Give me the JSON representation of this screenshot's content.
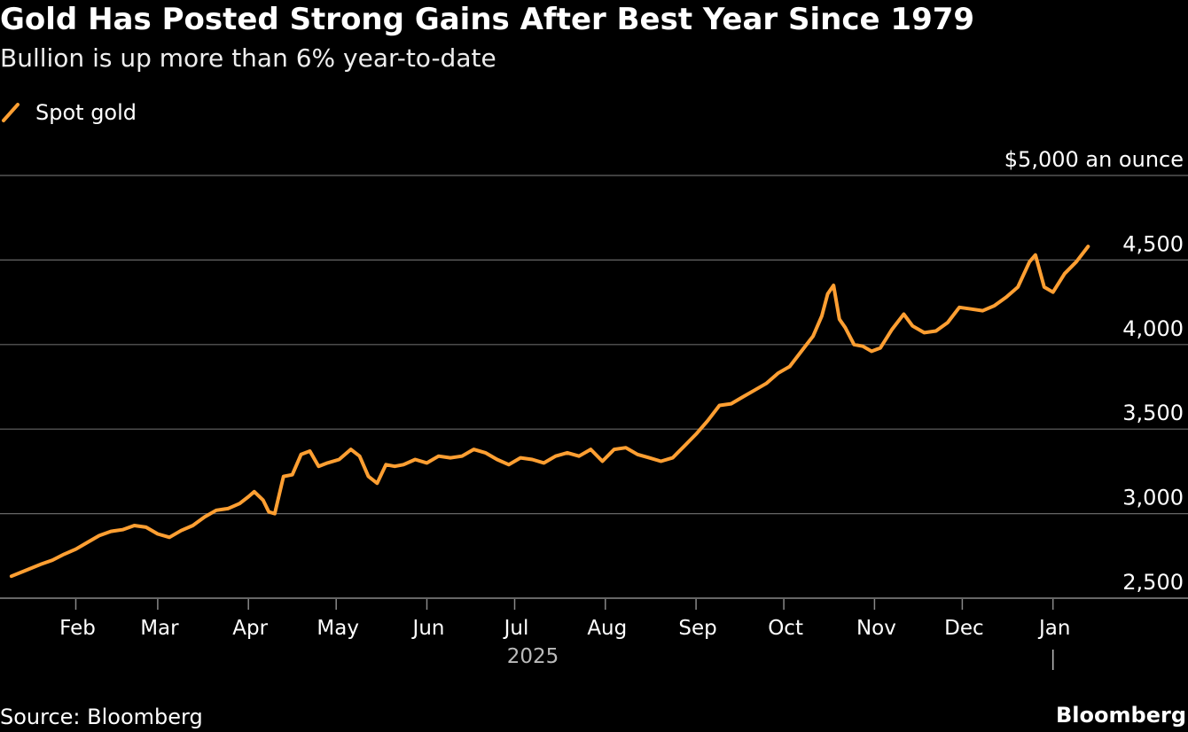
{
  "title": "Gold Has Posted Strong Gains After Best Year Since 1979",
  "subtitle": "Bullion is up more than 6% year-to-date",
  "source": "Source: Bloomberg",
  "brand": "Bloomberg",
  "colors": {
    "background": "#000000",
    "line": "#ff9f32",
    "grid": "#666666",
    "text": "#ffffff",
    "muted": "#bbbbbb"
  },
  "chart_data": {
    "type": "line",
    "title": "Gold Has Posted Strong Gains After Best Year Since 1979",
    "subtitle": "Bullion is up more than 6% year-to-date",
    "ylabel": "$5,000 an ounce",
    "ylim": [
      2500,
      5000
    ],
    "yticks": [
      2500,
      3000,
      3500,
      4000,
      4500,
      5000
    ],
    "ytick_labels": [
      "2,500",
      "3,000",
      "3,500",
      "4,000",
      "4,500",
      "$5,000 an ounce"
    ],
    "xlim": [
      "2025-01-07",
      "2026-01-31"
    ],
    "xticks": [
      {
        "date": "2025-02-01",
        "label": "Feb"
      },
      {
        "date": "2025-03-01",
        "label": "Mar"
      },
      {
        "date": "2025-04-01",
        "label": "Apr"
      },
      {
        "date": "2025-05-01",
        "label": "May"
      },
      {
        "date": "2025-06-01",
        "label": "Jun"
      },
      {
        "date": "2025-07-01",
        "label": "Jul"
      },
      {
        "date": "2025-08-01",
        "label": "Aug"
      },
      {
        "date": "2025-09-01",
        "label": "Sep"
      },
      {
        "date": "2025-10-01",
        "label": "Oct"
      },
      {
        "date": "2025-11-01",
        "label": "Nov"
      },
      {
        "date": "2025-12-01",
        "label": "Dec"
      },
      {
        "date": "2026-01-01",
        "label": "Jan"
      }
    ],
    "year_label": "2025",
    "grid": true,
    "legend": "top-left",
    "series": [
      {
        "name": "Spot gold",
        "color": "#ff9f32",
        "x": [
          "2025-01-10",
          "2025-01-15",
          "2025-01-20",
          "2025-01-24",
          "2025-01-28",
          "2025-02-01",
          "2025-02-05",
          "2025-02-09",
          "2025-02-13",
          "2025-02-17",
          "2025-02-21",
          "2025-02-25",
          "2025-03-01",
          "2025-03-05",
          "2025-03-09",
          "2025-03-13",
          "2025-03-17",
          "2025-03-21",
          "2025-03-25",
          "2025-03-29",
          "2025-04-01",
          "2025-04-03",
          "2025-04-06",
          "2025-04-08",
          "2025-04-10",
          "2025-04-13",
          "2025-04-16",
          "2025-04-19",
          "2025-04-22",
          "2025-04-25",
          "2025-04-28",
          "2025-05-02",
          "2025-05-06",
          "2025-05-09",
          "2025-05-12",
          "2025-05-15",
          "2025-05-18",
          "2025-05-21",
          "2025-05-24",
          "2025-05-28",
          "2025-06-01",
          "2025-06-05",
          "2025-06-09",
          "2025-06-13",
          "2025-06-17",
          "2025-06-21",
          "2025-06-25",
          "2025-06-29",
          "2025-07-03",
          "2025-07-07",
          "2025-07-11",
          "2025-07-15",
          "2025-07-19",
          "2025-07-23",
          "2025-07-27",
          "2025-07-31",
          "2025-08-04",
          "2025-08-08",
          "2025-08-12",
          "2025-08-16",
          "2025-08-20",
          "2025-08-24",
          "2025-08-28",
          "2025-09-01",
          "2025-09-05",
          "2025-09-09",
          "2025-09-13",
          "2025-09-17",
          "2025-09-21",
          "2025-09-25",
          "2025-09-29",
          "2025-10-03",
          "2025-10-07",
          "2025-10-11",
          "2025-10-14",
          "2025-10-16",
          "2025-10-18",
          "2025-10-20",
          "2025-10-22",
          "2025-10-25",
          "2025-10-28",
          "2025-10-31",
          "2025-11-03",
          "2025-11-07",
          "2025-11-11",
          "2025-11-14",
          "2025-11-18",
          "2025-11-22",
          "2025-11-26",
          "2025-11-30",
          "2025-12-04",
          "2025-12-08",
          "2025-12-12",
          "2025-12-16",
          "2025-12-20",
          "2025-12-24",
          "2025-12-26",
          "2025-12-29",
          "2026-01-01",
          "2026-01-05",
          "2026-01-09",
          "2026-01-13"
        ],
        "values": [
          2630,
          2665,
          2700,
          2725,
          2760,
          2790,
          2830,
          2870,
          2895,
          2905,
          2930,
          2920,
          2880,
          2860,
          2900,
          2930,
          2980,
          3020,
          3030,
          3060,
          3100,
          3130,
          3080,
          3010,
          3000,
          3220,
          3230,
          3350,
          3370,
          3280,
          3300,
          3320,
          3380,
          3340,
          3220,
          3180,
          3290,
          3280,
          3290,
          3320,
          3300,
          3340,
          3330,
          3340,
          3380,
          3360,
          3320,
          3290,
          3330,
          3320,
          3300,
          3340,
          3360,
          3340,
          3380,
          3310,
          3380,
          3390,
          3350,
          3330,
          3310,
          3330,
          3400,
          3470,
          3550,
          3640,
          3650,
          3690,
          3730,
          3770,
          3830,
          3870,
          3960,
          4050,
          4170,
          4300,
          4350,
          4150,
          4100,
          4000,
          3990,
          3960,
          3980,
          4090,
          4180,
          4110,
          4070,
          4080,
          4130,
          4220,
          4210,
          4200,
          4230,
          4280,
          4340,
          4490,
          4530,
          4340,
          4310,
          4420,
          4490,
          4580
        ]
      }
    ]
  }
}
